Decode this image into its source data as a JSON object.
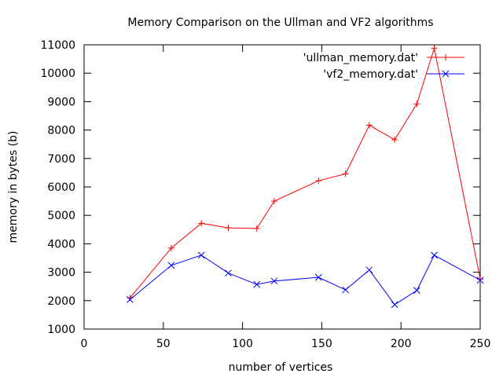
{
  "chart_data": {
    "type": "line",
    "title": "Memory Comparison on the Ullman and VF2 algorithms",
    "xlabel": "number of vertices",
    "ylabel": "memory in bytes (b)",
    "xlim": [
      0,
      250
    ],
    "ylim": [
      1000,
      11000
    ],
    "xticks": [
      0,
      50,
      100,
      150,
      200,
      250
    ],
    "yticks": [
      1000,
      2000,
      3000,
      4000,
      5000,
      6000,
      7000,
      8000,
      9000,
      10000,
      11000
    ],
    "grid": false,
    "legend_position": "top-right",
    "series": [
      {
        "name": "'ullman_memory.dat'",
        "color": "#ff0000",
        "marker": "plus",
        "x": [
          29,
          55,
          74,
          91,
          109,
          120,
          148,
          165,
          180,
          196,
          210,
          221,
          250
        ],
        "y": [
          2100,
          3850,
          4720,
          4560,
          4540,
          5500,
          6220,
          6460,
          8170,
          7660,
          8920,
          10880,
          2760
        ]
      },
      {
        "name": "'vf2_memory.dat'",
        "color": "#0000ff",
        "marker": "cross",
        "x": [
          29,
          55,
          74,
          91,
          109,
          120,
          148,
          165,
          180,
          196,
          210,
          221,
          250
        ],
        "y": [
          2040,
          3240,
          3600,
          2970,
          2570,
          2690,
          2820,
          2380,
          3080,
          1860,
          2360,
          3600,
          2720
        ]
      }
    ]
  }
}
